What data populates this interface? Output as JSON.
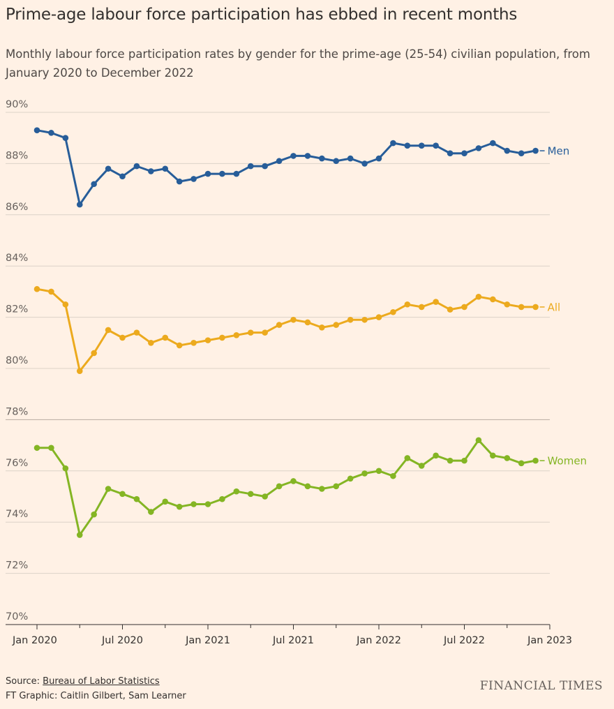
{
  "title": "Prime-age labour force participation has ebbed in recent months",
  "subtitle": "Monthly labour force participation rates by gender for the prime-age (25-54) civilian population, from January 2020 to December 2022",
  "footer": {
    "source_prefix": "Source: ",
    "source_link": "Bureau of Labor Statistics",
    "credit": "FT Graphic: Caitlin Gilbert, Sam Learner"
  },
  "brand": "FINANCIAL TIMES",
  "chart_data": {
    "type": "line",
    "title": "Prime-age labour force participation has ebbed in recent months",
    "xlabel": "",
    "ylabel": "",
    "ylim": [
      70,
      90
    ],
    "yticks": [
      70,
      72,
      74,
      76,
      78,
      80,
      82,
      84,
      86,
      88,
      90
    ],
    "ytick_labels": [
      "70%",
      "72%",
      "74%",
      "76%",
      "78%",
      "80%",
      "82%",
      "84%",
      "86%",
      "88%",
      "90%"
    ],
    "xlim": [
      0,
      36
    ],
    "xticks": [
      0,
      6,
      12,
      18,
      24,
      30,
      36
    ],
    "xtick_labels": [
      "Jan 2020",
      "Jul 2020",
      "Jan 2021",
      "Jul 2021",
      "Jan 2022",
      "Jul 2022",
      "Jan 2023"
    ],
    "x_start": "Jan 2020",
    "grid": true,
    "series": [
      {
        "name": "Men",
        "color": "#275d99",
        "values": [
          89.3,
          89.2,
          89.0,
          86.4,
          87.2,
          87.8,
          87.5,
          87.9,
          87.7,
          87.8,
          87.3,
          87.4,
          87.6,
          87.6,
          87.6,
          87.9,
          87.9,
          88.1,
          88.3,
          88.3,
          88.2,
          88.1,
          88.2,
          88.0,
          88.2,
          88.8,
          88.7,
          88.7,
          88.7,
          88.4,
          88.4,
          88.6,
          88.8,
          88.5,
          88.4,
          88.5
        ]
      },
      {
        "name": "All",
        "color": "#ecaa1e",
        "values": [
          83.1,
          83.0,
          82.5,
          79.9,
          80.6,
          81.5,
          81.2,
          81.4,
          81.0,
          81.2,
          80.9,
          81.0,
          81.1,
          81.2,
          81.3,
          81.4,
          81.4,
          81.7,
          81.9,
          81.8,
          81.6,
          81.7,
          81.9,
          81.9,
          82.0,
          82.2,
          82.5,
          82.4,
          82.6,
          82.3,
          82.4,
          82.8,
          82.7,
          82.5,
          82.4,
          82.4
        ]
      },
      {
        "name": "Women",
        "color": "#84b524",
        "values": [
          76.9,
          76.9,
          76.1,
          73.5,
          74.3,
          75.3,
          75.1,
          74.9,
          74.4,
          74.8,
          74.6,
          74.7,
          74.7,
          74.9,
          75.2,
          75.1,
          75.0,
          75.4,
          75.6,
          75.4,
          75.3,
          75.4,
          75.7,
          75.9,
          76.0,
          75.8,
          76.5,
          76.2,
          76.6,
          76.4,
          76.4,
          77.2,
          76.6,
          76.5,
          76.3,
          76.4
        ]
      }
    ]
  }
}
